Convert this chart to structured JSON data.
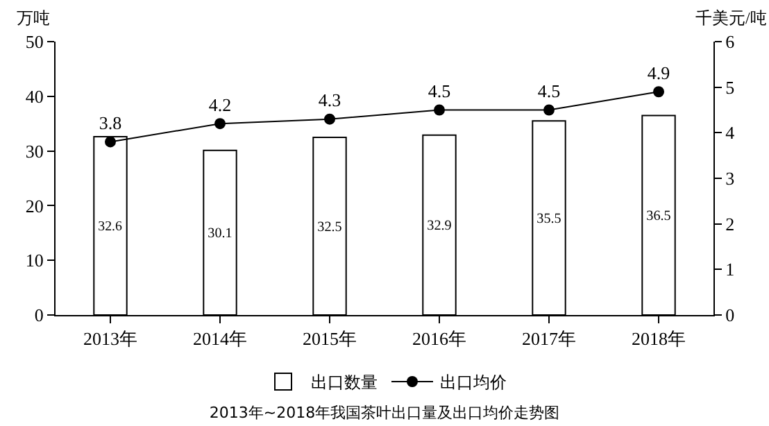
{
  "chart_data": {
    "type": "bar",
    "title": "2013年~2018年我国茶叶出口量及出口均价走势图",
    "ylabel": "万吨",
    "y2label": "千美元/吨",
    "categories": [
      "2013年",
      "2014年",
      "2015年",
      "2016年",
      "2017年",
      "2018年"
    ],
    "series": [
      {
        "name": "出口数量",
        "color": "#ffffff",
        "values": [
          32.6,
          30.1,
          32.5,
          32.9,
          35.5,
          36.5
        ]
      },
      {
        "name": "出口均价",
        "type": "line",
        "axis": "y2",
        "color": "#000000",
        "marker": "circle",
        "values": [
          3.8,
          4.2,
          4.3,
          4.5,
          4.5,
          4.9
        ]
      }
    ],
    "ylim": [
      0,
      50
    ],
    "yticks": [
      0,
      10,
      20,
      30,
      40,
      50
    ],
    "y2lim": [
      0,
      6
    ],
    "y2ticks": [
      0,
      1,
      2,
      3,
      4,
      5,
      6
    ],
    "data_labels": true,
    "legend": "bottom"
  }
}
